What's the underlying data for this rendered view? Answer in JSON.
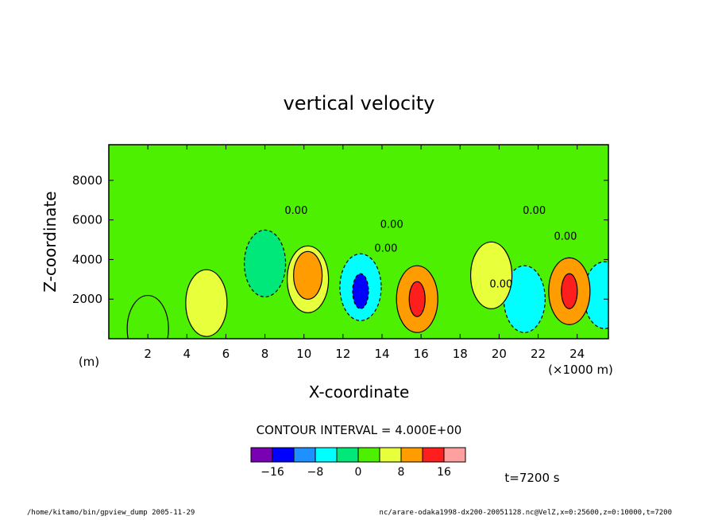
{
  "chart_data": {
    "type": "heatmap",
    "title": "vertical velocity",
    "xlabel": "X-coordinate",
    "ylabel": "Z-coordinate",
    "x_unit_left": "(m)",
    "x_multiplier": "(×1000 m)",
    "xlim": [
      0,
      25.6
    ],
    "ylim": [
      0,
      9800
    ],
    "x_ticks": [
      2,
      4,
      6,
      8,
      10,
      12,
      14,
      16,
      18,
      20,
      22,
      24
    ],
    "y_ticks": [
      2000,
      4000,
      6000,
      8000
    ],
    "contour_interval_label": "CONTOUR INTERVAL = 4.000E+00",
    "contour_labels": [
      "0.00",
      "0.00",
      "0.00",
      "0.00",
      "0.00",
      "0.00"
    ],
    "colorbar": {
      "levels": [
        -20,
        -16,
        -12,
        -8,
        -4,
        0,
        4,
        8,
        12,
        16,
        20
      ],
      "colors": [
        "#7a00b4",
        "#0000ff",
        "#1e90ff",
        "#00ffff",
        "#00e87a",
        "#4cf000",
        "#e8ff3c",
        "#ff9c00",
        "#ff1e1e",
        "#ffa0a0"
      ],
      "tick_labels": [
        {
          "value": -16,
          "label": "−16"
        },
        {
          "value": -8,
          "label": "−8"
        },
        {
          "value": 0,
          "label": "0"
        },
        {
          "value": 8,
          "label": "8"
        },
        {
          "value": 16,
          "label": "16"
        }
      ]
    },
    "time_label": "t=7200 s",
    "cells": [
      {
        "x": 2.0,
        "z": 500,
        "w": 1
      },
      {
        "x": 5.0,
        "z": 1800,
        "w": 6
      },
      {
        "x": 8.0,
        "z": 3800,
        "w": -1
      },
      {
        "x": 10.2,
        "z": 3000,
        "w": 7
      },
      {
        "x": 10.2,
        "z": 3200,
        "w": 11
      },
      {
        "x": 12.9,
        "z": 2600,
        "w": -8
      },
      {
        "x": 12.9,
        "z": 2400,
        "w": -14
      },
      {
        "x": 15.8,
        "z": 2000,
        "w": 9
      },
      {
        "x": 15.8,
        "z": 2000,
        "w": 14
      },
      {
        "x": 19.6,
        "z": 3200,
        "w": 6
      },
      {
        "x": 21.3,
        "z": 2000,
        "w": -5
      },
      {
        "x": 23.6,
        "z": 2400,
        "w": 9
      },
      {
        "x": 23.6,
        "z": 2400,
        "w": 14
      },
      {
        "x": 25.4,
        "z": 2200,
        "w": -5
      }
    ]
  },
  "footer": {
    "left": "/home/kitamo/bin/gpview_dump   2005-11-29",
    "right": "nc/arare-odaka1998-dx200-20051128.nc@VelZ,x=0:25600,z=0:10000,t=7200"
  }
}
